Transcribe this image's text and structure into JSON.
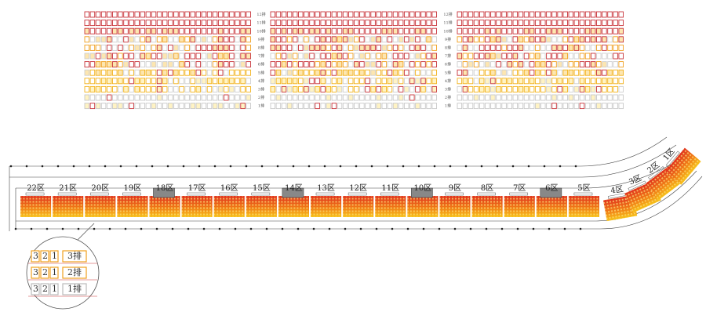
{
  "row_labels": [
    "12排",
    "11排",
    "10排",
    "9排",
    "8排",
    "7排",
    "6排",
    "5排",
    "4排",
    "3排",
    "2排",
    "1排"
  ],
  "sections": [
    "22区",
    "21区",
    "20区",
    "19区",
    "18区",
    "17区",
    "16区",
    "15区",
    "14区",
    "13区",
    "12区",
    "11区",
    "10区",
    "9区",
    "8区",
    "7区",
    "6区",
    "5区",
    "4区",
    "3区",
    "2区",
    "1区"
  ],
  "inset_rows": [
    {
      "seats": [
        "3",
        "2",
        "1"
      ],
      "label": "3排"
    },
    {
      "seats": [
        "3",
        "2",
        "1"
      ],
      "label": "2排"
    },
    {
      "seats": [
        "3",
        "2",
        "1"
      ],
      "label": "1排"
    }
  ]
}
